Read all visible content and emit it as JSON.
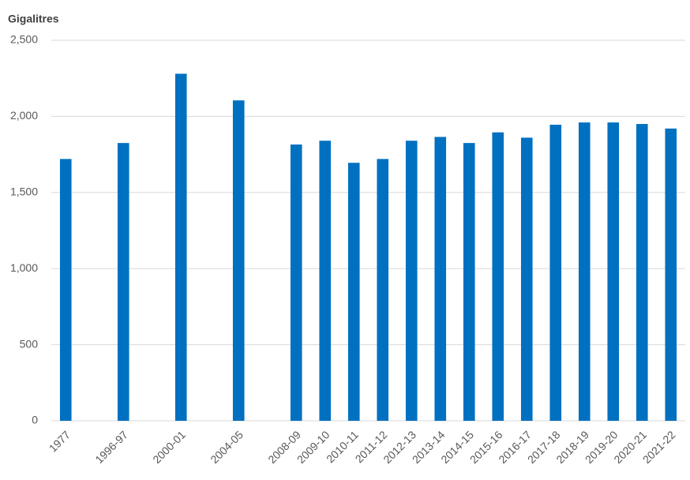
{
  "chart_data": {
    "type": "bar",
    "y_axis_label": "Gigalitres",
    "categories": [
      "1977",
      null,
      "1996-97",
      null,
      "2000-01",
      null,
      "2004-05",
      null,
      "2008-09",
      "2009-10",
      "2010-11",
      "2011-12",
      "2012-13",
      "2013-14",
      "2014-15",
      "2015-16",
      "2016-17",
      "2017-18",
      "2018-19",
      "2019-20",
      "2020-21",
      "2021-22"
    ],
    "values": [
      1720,
      null,
      1825,
      null,
      2280,
      null,
      2105,
      null,
      1815,
      1840,
      1695,
      1720,
      1840,
      1865,
      1825,
      1895,
      1860,
      1945,
      1960,
      1960,
      1950,
      1920
    ],
    "color": "#0070c0",
    "ylim": [
      0,
      2500
    ],
    "yticks": [
      0,
      500,
      {
        "value": 1000,
        "label": "1,000"
      },
      {
        "value": 1500,
        "label": "1,500"
      },
      {
        "value": 2000,
        "label": "2,000"
      },
      {
        "value": 2500,
        "label": "2,500"
      }
    ],
    "grid": true
  }
}
